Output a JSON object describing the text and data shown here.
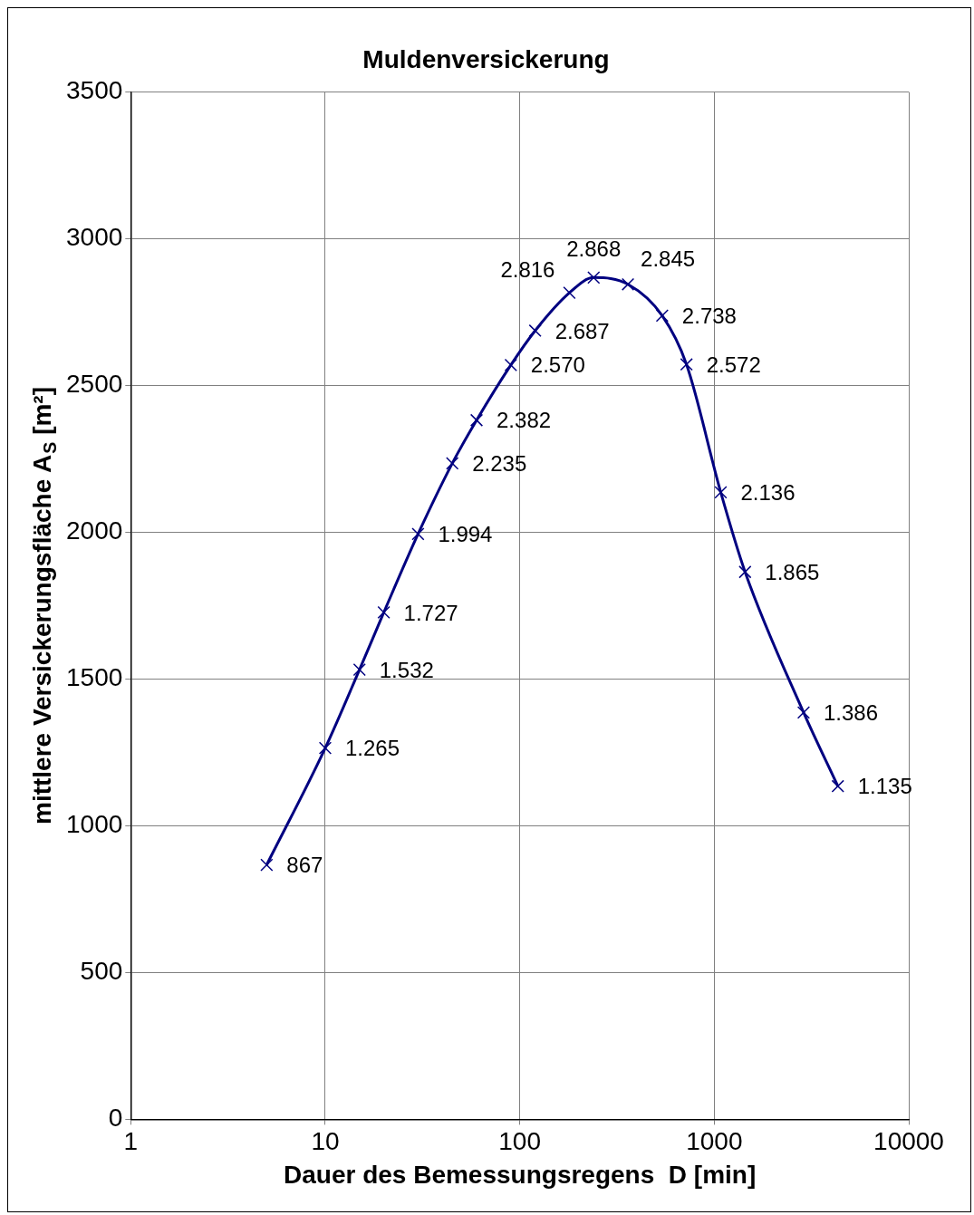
{
  "chart_data": {
    "type": "line",
    "title": "Muldenversickerung",
    "xlabel": "Dauer des Bemessungsregens  D [min]",
    "ylabel": "mittlere Versickerungsfläche A$_{S}$ [m²]",
    "x": [
      5,
      10,
      15,
      20,
      30,
      45,
      60,
      90,
      120,
      180,
      240,
      360,
      540,
      720,
      1080,
      1440,
      2880,
      4320
    ],
    "series": [
      {
        "color": "#000080",
        "values": [
          867,
          1265,
          1532,
          1727,
          1994,
          2235,
          2382,
          2570,
          2687,
          2816,
          2868,
          2845,
          2738,
          2572,
          2136,
          1865,
          1386,
          1135
        ],
        "value_labels": [
          "867",
          "1.265",
          "1.532",
          "1.727",
          "1.994",
          "2.235",
          "2.382",
          "2.570",
          "2.687",
          "2.816",
          "2.868",
          "2.845",
          "2.738",
          "2.572",
          "2.136",
          "1.865",
          "1.386",
          "1.135"
        ]
      }
    ],
    "log": "x",
    "xlim": [
      1,
      10000
    ],
    "xticks": [
      1,
      10,
      100,
      1000,
      10000
    ],
    "ylim": [
      0,
      3500
    ],
    "yticks": [
      0,
      500,
      1000,
      1500,
      2000,
      2500,
      3000,
      3500
    ],
    "grid": true,
    "legend": false,
    "marker": "cross",
    "line_style": "solid"
  }
}
